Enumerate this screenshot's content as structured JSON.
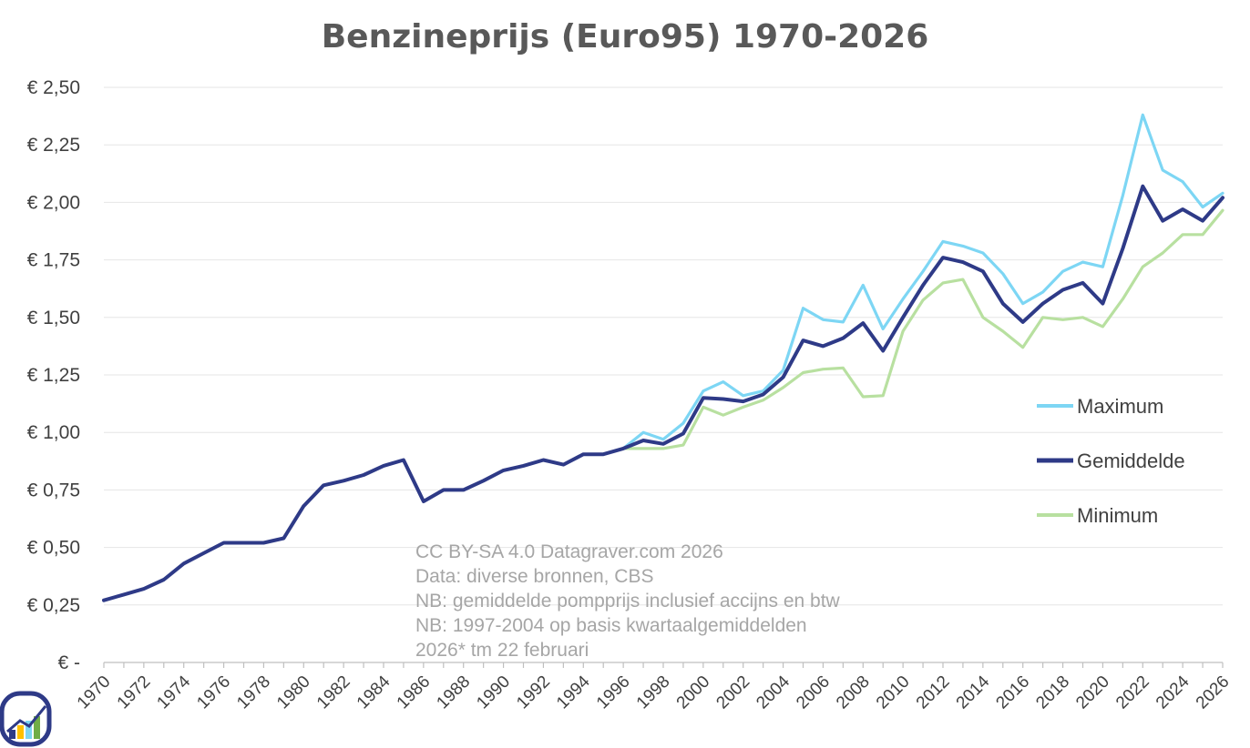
{
  "chart_data": {
    "type": "line",
    "title": "Benzineprijs (Euro95) 1970-2026",
    "xlabel": "",
    "ylabel": "",
    "ylim": [
      0,
      2.5
    ],
    "grid": true,
    "legend_position": "right",
    "y_ticks": [
      {
        "value": 0,
        "label": "€ -"
      },
      {
        "value": 0.25,
        "label": "€ 0,25"
      },
      {
        "value": 0.5,
        "label": "€ 0,50"
      },
      {
        "value": 0.75,
        "label": "€ 0,75"
      },
      {
        "value": 1.0,
        "label": "€ 1,00"
      },
      {
        "value": 1.25,
        "label": "€ 1,25"
      },
      {
        "value": 1.5,
        "label": "€ 1,50"
      },
      {
        "value": 1.75,
        "label": "€ 1,75"
      },
      {
        "value": 2.0,
        "label": "€ 2,00"
      },
      {
        "value": 2.25,
        "label": "€ 2,25"
      },
      {
        "value": 2.5,
        "label": "€ 2,50"
      }
    ],
    "x_range": [
      1970,
      2026
    ],
    "x_tick_labels": [
      "1970",
      "1972",
      "1974",
      "1976",
      "1978",
      "1980",
      "1982",
      "1984",
      "1986",
      "1988",
      "1990",
      "1992",
      "1994",
      "1996",
      "1998",
      "2000",
      "2002",
      "2004",
      "2006",
      "2008",
      "2010",
      "2012",
      "2014",
      "2016",
      "2018",
      "2020",
      "2022",
      "2024",
      "2026"
    ],
    "series": [
      {
        "name": "Maximum",
        "color": "#7dd6f4",
        "x": [
          1996,
          1997,
          1998,
          1999,
          2000,
          2001,
          2002,
          2003,
          2004,
          2005,
          2006,
          2007,
          2008,
          2009,
          2010,
          2011,
          2012,
          2013,
          2014,
          2015,
          2016,
          2017,
          2018,
          2019,
          2020,
          2021,
          2022,
          2023,
          2024,
          2025,
          2026
        ],
        "values": [
          0.93,
          1.0,
          0.97,
          1.04,
          1.18,
          1.22,
          1.16,
          1.18,
          1.27,
          1.54,
          1.49,
          1.48,
          1.64,
          1.45,
          1.58,
          1.7,
          1.83,
          1.81,
          1.78,
          1.69,
          1.56,
          1.61,
          1.7,
          1.74,
          1.72,
          2.03,
          2.38,
          2.14,
          2.09,
          1.98,
          2.04
        ]
      },
      {
        "name": "Gemiddelde",
        "color": "#2e3a87",
        "x": [
          1970,
          1971,
          1972,
          1973,
          1974,
          1975,
          1976,
          1977,
          1978,
          1979,
          1980,
          1981,
          1982,
          1983,
          1984,
          1985,
          1986,
          1987,
          1988,
          1989,
          1990,
          1991,
          1992,
          1993,
          1994,
          1995,
          1996,
          1997,
          1998,
          1999,
          2000,
          2001,
          2002,
          2003,
          2004,
          2005,
          2006,
          2007,
          2008,
          2009,
          2010,
          2011,
          2012,
          2013,
          2014,
          2015,
          2016,
          2017,
          2018,
          2019,
          2020,
          2021,
          2022,
          2023,
          2024,
          2025,
          2026
        ],
        "values": [
          0.27,
          0.295,
          0.32,
          0.36,
          0.43,
          0.475,
          0.52,
          0.52,
          0.52,
          0.54,
          0.68,
          0.77,
          0.79,
          0.815,
          0.855,
          0.88,
          0.7,
          0.75,
          0.75,
          0.79,
          0.835,
          0.855,
          0.88,
          0.86,
          0.905,
          0.905,
          0.93,
          0.965,
          0.95,
          0.995,
          1.15,
          1.145,
          1.135,
          1.165,
          1.24,
          1.4,
          1.375,
          1.41,
          1.475,
          1.355,
          1.5,
          1.64,
          1.76,
          1.74,
          1.7,
          1.56,
          1.48,
          1.56,
          1.62,
          1.65,
          1.56,
          1.8,
          2.07,
          1.92,
          1.97,
          1.92,
          2.02
        ]
      },
      {
        "name": "Minimum",
        "color": "#b8e0a0",
        "x": [
          1996,
          1997,
          1998,
          1999,
          2000,
          2001,
          2002,
          2003,
          2004,
          2005,
          2006,
          2007,
          2008,
          2009,
          2010,
          2011,
          2012,
          2013,
          2014,
          2015,
          2016,
          2017,
          2018,
          2019,
          2020,
          2021,
          2022,
          2023,
          2024,
          2025,
          2026
        ],
        "values": [
          0.93,
          0.93,
          0.93,
          0.945,
          1.11,
          1.075,
          1.11,
          1.14,
          1.195,
          1.26,
          1.275,
          1.28,
          1.155,
          1.16,
          1.44,
          1.575,
          1.65,
          1.665,
          1.5,
          1.44,
          1.37,
          1.5,
          1.49,
          1.5,
          1.46,
          1.58,
          1.72,
          1.78,
          1.86,
          1.86,
          1.965
        ]
      }
    ],
    "annotations": [
      "CC BY-SA 4.0 Datagraver.com 2026",
      "Data: diverse bronnen, CBS",
      "NB: gemiddelde pompprijs inclusief accijns en btw",
      "NB: 1997-2004 op basis kwartaalgemiddelden",
      "2026* tm 22 februari"
    ]
  },
  "logo": {
    "name": "Datagraver logo",
    "colors": [
      "#2e3a87",
      "#ffc000",
      "#7dd6f4",
      "#70ad47"
    ]
  }
}
